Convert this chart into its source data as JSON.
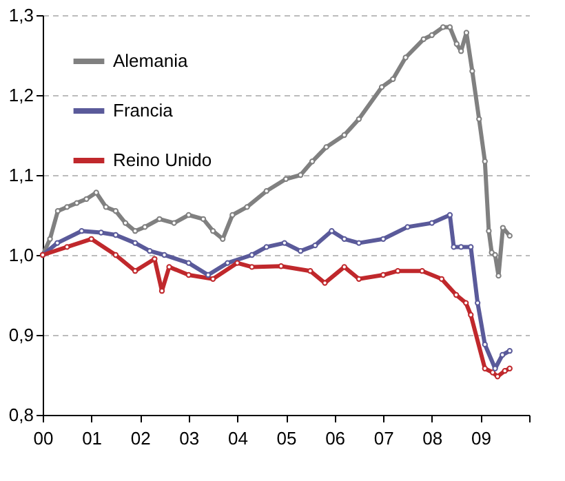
{
  "chart_data": {
    "type": "line",
    "legend": "top left",
    "grid": "y",
    "marker": "circle",
    "line_style": "solid",
    "xlim": [
      0,
      10
    ],
    "ylim": [
      0.8,
      1.3
    ],
    "xticks": [
      {
        "value": 0,
        "label": "00"
      },
      {
        "value": 1,
        "label": "01"
      },
      {
        "value": 2,
        "label": "02"
      },
      {
        "value": 3,
        "label": "03"
      },
      {
        "value": 4,
        "label": "04"
      },
      {
        "value": 5,
        "label": "05"
      },
      {
        "value": 6,
        "label": "06"
      },
      {
        "value": 7,
        "label": "07"
      },
      {
        "value": 8,
        "label": "08"
      },
      {
        "value": 9,
        "label": "09"
      },
      {
        "value": 10,
        "label": null
      }
    ],
    "yticks": [
      {
        "value": 0.8,
        "label": "0,8"
      },
      {
        "value": 0.9,
        "label": "0,9"
      },
      {
        "value": 1.0,
        "label": "1,0"
      },
      {
        "value": 1.1,
        "label": "1,1"
      },
      {
        "value": 1.2,
        "label": "1,2"
      },
      {
        "value": 1.3,
        "label": "1,3"
      }
    ],
    "series": [
      {
        "name": "Alemania",
        "color": "#808080",
        "x": [
          0,
          0.15,
          0.31,
          0.5,
          0.7,
          0.9,
          1.1,
          1.3,
          1.5,
          1.7,
          1.9,
          2.1,
          2.4,
          2.7,
          3.0,
          3.3,
          3.5,
          3.7,
          3.9,
          4.2,
          4.6,
          5.0,
          5.3,
          5.54,
          5.83,
          6.2,
          6.5,
          6.97,
          7.2,
          7.46,
          7.83,
          8.0,
          8.23,
          8.37,
          8.51,
          8.6,
          8.71,
          8.83,
          8.97,
          9.09,
          9.17,
          9.23,
          9.3,
          9.37,
          9.46,
          9.6
        ],
        "values": [
          1.0,
          1.02,
          1.055,
          1.06,
          1.065,
          1.07,
          1.078,
          1.06,
          1.055,
          1.04,
          1.03,
          1.035,
          1.045,
          1.04,
          1.05,
          1.045,
          1.03,
          1.02,
          1.05,
          1.06,
          1.08,
          1.095,
          1.1,
          1.117,
          1.135,
          1.15,
          1.17,
          1.21,
          1.22,
          1.247,
          1.27,
          1.275,
          1.285,
          1.285,
          1.264,
          1.255,
          1.278,
          1.23,
          1.17,
          1.117,
          1.03,
          1.003,
          1.0,
          0.974,
          1.034,
          1.024
        ]
      },
      {
        "name": "Francia",
        "color": "#5a5a9a",
        "x": [
          0,
          0.3,
          0.8,
          1.2,
          1.5,
          1.9,
          2.2,
          2.5,
          3.0,
          3.4,
          3.8,
          4.3,
          4.6,
          4.97,
          5.3,
          5.6,
          5.94,
          6.2,
          6.5,
          7.0,
          7.5,
          8.0,
          8.37,
          8.45,
          8.6,
          8.8,
          8.94,
          9.09,
          9.3,
          9.45,
          9.6
        ],
        "values": [
          1.0,
          1.015,
          1.03,
          1.028,
          1.025,
          1.015,
          1.005,
          1.0,
          0.99,
          0.975,
          0.99,
          1.0,
          1.01,
          1.015,
          1.005,
          1.012,
          1.03,
          1.02,
          1.015,
          1.02,
          1.035,
          1.04,
          1.05,
          1.01,
          1.01,
          1.01,
          0.94,
          0.888,
          0.858,
          0.875,
          0.88
        ]
      },
      {
        "name": "Reino Unido",
        "color": "#c0282c",
        "x": [
          0,
          0.5,
          1.0,
          1.5,
          1.9,
          2.3,
          2.45,
          2.6,
          3.0,
          3.5,
          4.0,
          4.3,
          4.9,
          5.5,
          5.8,
          6.2,
          6.5,
          7.0,
          7.3,
          7.8,
          8.2,
          8.5,
          8.7,
          8.8,
          9.09,
          9.25,
          9.35,
          9.5,
          9.6
        ],
        "values": [
          1.0,
          1.01,
          1.02,
          1.0,
          0.98,
          0.995,
          0.955,
          0.985,
          0.975,
          0.97,
          0.99,
          0.985,
          0.986,
          0.98,
          0.965,
          0.985,
          0.97,
          0.975,
          0.98,
          0.98,
          0.97,
          0.95,
          0.94,
          0.925,
          0.858,
          0.853,
          0.848,
          0.855,
          0.858
        ]
      }
    ]
  }
}
